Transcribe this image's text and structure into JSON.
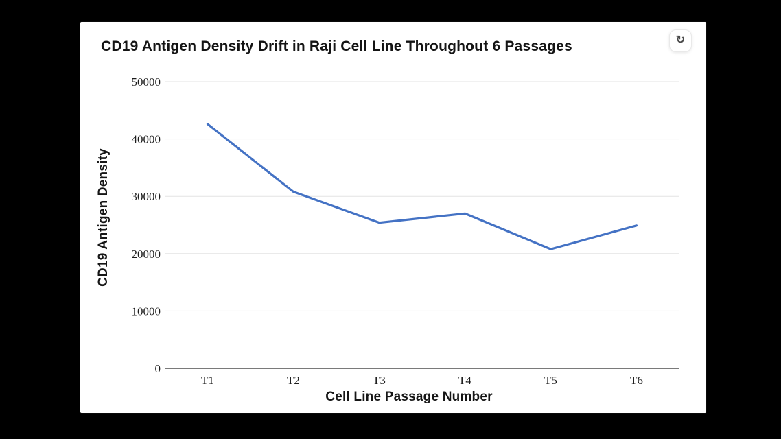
{
  "app": {
    "background_color": "#000000",
    "card_color": "#ffffff"
  },
  "header": {
    "title": "CD19 Antigen Density Drift in Raji Cell Line Throughout 6 Passages"
  },
  "icons": {
    "refresh": "↻"
  },
  "colors": {
    "line": "#4472c4",
    "gridline": "#e3e3e3",
    "axis": "#7a7a7a",
    "tick_text": "#1c1c1c"
  },
  "chart_data": {
    "type": "line",
    "title": "CD19 Antigen Density Drift in Raji Cell Line Throughout 6 Passages",
    "categories": [
      "T1",
      "T2",
      "T3",
      "T4",
      "T5",
      "T6"
    ],
    "series": [
      {
        "name": "CD19 Antigen Density",
        "values": [
          42600,
          30800,
          25400,
          27000,
          20800,
          24900
        ],
        "color": "#4472c4"
      }
    ],
    "xlabel": "Cell Line Passage Number",
    "ylabel": "CD19 Antigen Density",
    "ylim": [
      0,
      50000
    ],
    "yticks": [
      0,
      10000,
      20000,
      30000,
      40000,
      50000
    ],
    "grid": true,
    "legend": false,
    "markers": false
  }
}
